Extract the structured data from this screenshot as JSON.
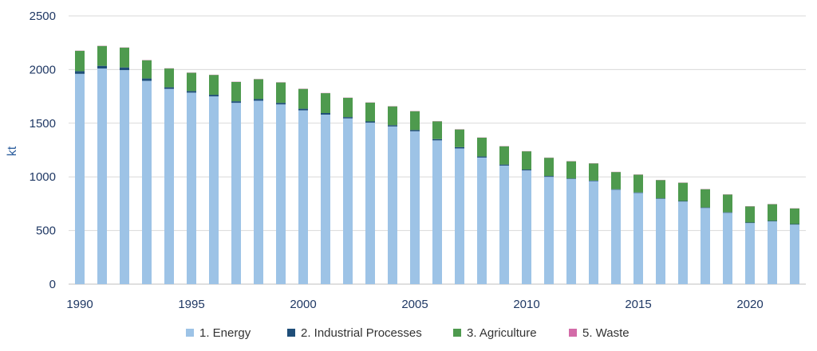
{
  "chart_data": {
    "type": "bar",
    "stacked": true,
    "title": "",
    "xlabel": "",
    "ylabel": "kt",
    "ylim": [
      0,
      2500
    ],
    "yticks": [
      0,
      500,
      1000,
      1500,
      2000,
      2500
    ],
    "xtick_labels": [
      "1990",
      "1995",
      "2000",
      "2005",
      "2010",
      "2015",
      "2020"
    ],
    "grid": "horizontal",
    "legend_position": "bottom",
    "categories": [
      1990,
      1991,
      1992,
      1993,
      1994,
      1995,
      1996,
      1997,
      1998,
      1999,
      2000,
      2001,
      2002,
      2003,
      2004,
      2005,
      2006,
      2007,
      2008,
      2009,
      2010,
      2011,
      2012,
      2013,
      2014,
      2015,
      2016,
      2017,
      2018,
      2019,
      2020,
      2021,
      2022
    ],
    "series": [
      {
        "name": "1. Energy",
        "color": "#9DC3E6",
        "values": [
          1960,
          2010,
          1995,
          1895,
          1820,
          1785,
          1750,
          1690,
          1710,
          1675,
          1620,
          1580,
          1545,
          1505,
          1470,
          1425,
          1340,
          1265,
          1180,
          1105,
          1060,
          1000,
          980,
          960,
          880,
          850,
          795,
          770,
          710,
          665,
          570,
          585,
          555
        ]
      },
      {
        "name": "2. Industrial Processes",
        "color": "#1F4E79",
        "values": [
          25,
          25,
          25,
          22,
          15,
          15,
          15,
          15,
          15,
          15,
          15,
          15,
          12,
          12,
          12,
          12,
          12,
          12,
          10,
          10,
          8,
          8,
          5,
          5,
          5,
          5,
          5,
          5,
          5,
          5,
          5,
          5,
          5
        ]
      },
      {
        "name": "3. Agriculture",
        "color": "#4E9A4E",
        "values": [
          190,
          185,
          185,
          170,
          175,
          170,
          185,
          180,
          185,
          190,
          185,
          185,
          180,
          175,
          175,
          175,
          165,
          165,
          175,
          170,
          170,
          170,
          160,
          160,
          160,
          165,
          170,
          170,
          170,
          165,
          150,
          155,
          145
        ]
      },
      {
        "name": "5. Waste",
        "color": "#D36BA8",
        "values": [
          2,
          2,
          2,
          2,
          2,
          2,
          2,
          2,
          2,
          2,
          2,
          2,
          2,
          2,
          2,
          2,
          2,
          2,
          2,
          2,
          2,
          2,
          2,
          2,
          2,
          2,
          2,
          2,
          2,
          2,
          2,
          2,
          2
        ]
      }
    ]
  }
}
